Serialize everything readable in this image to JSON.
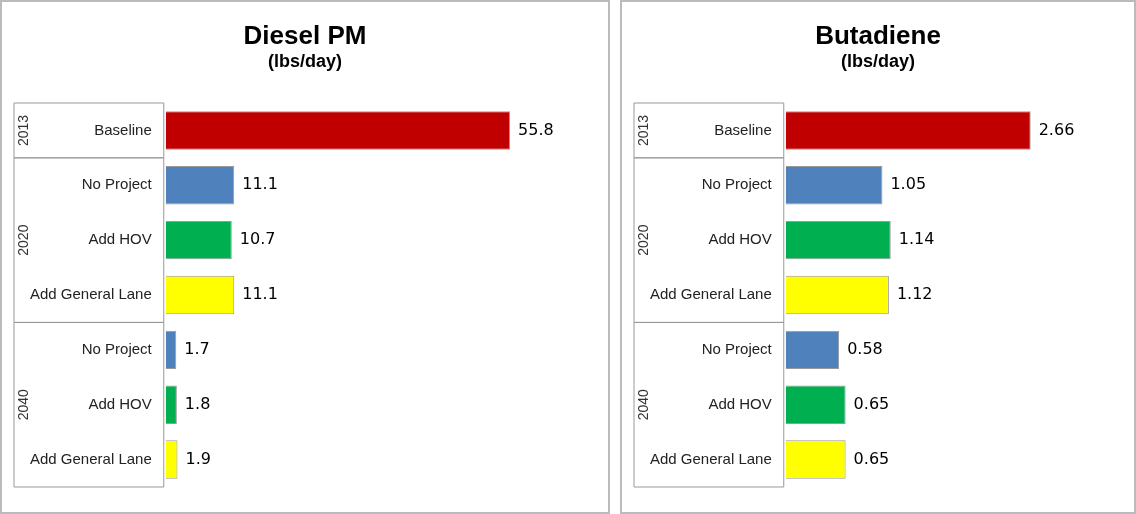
{
  "chart_data": [
    {
      "type": "bar",
      "orientation": "horizontal",
      "title": "Diesel PM",
      "subtitle": "(lbs/day)",
      "categories": [
        "Baseline",
        "No Project",
        "Add HOV",
        "Add General Lane",
        "No Project",
        "Add HOV",
        "Add General Lane"
      ],
      "values": [
        55.8,
        11.1,
        10.7,
        11.1,
        1.7,
        1.8,
        1.9
      ],
      "colors": [
        "#c00000",
        "#4f81bd",
        "#00b050",
        "#ffff00",
        "#4f81bd",
        "#00b050",
        "#ffff00"
      ],
      "tick_labels": "y",
      "data_labels": true,
      "annotations": [
        "2013",
        "2020",
        "2040"
      ]
    },
    {
      "type": "bar",
      "orientation": "horizontal",
      "title": "Butadiene",
      "subtitle": "(lbs/day)",
      "categories": [
        "Baseline",
        "No Project",
        "Add HOV",
        "Add General Lane",
        "No Project",
        "Add HOV",
        "Add General Lane"
      ],
      "values": [
        2.66,
        1.05,
        1.14,
        1.12,
        0.58,
        0.65,
        0.65
      ],
      "colors": [
        "#c00000",
        "#4f81bd",
        "#00b050",
        "#ffff00",
        "#4f81bd",
        "#00b050",
        "#ffff00"
      ],
      "tick_labels": "y",
      "data_labels": true,
      "annotations": [
        "2013",
        "2020",
        "2040"
      ]
    }
  ]
}
